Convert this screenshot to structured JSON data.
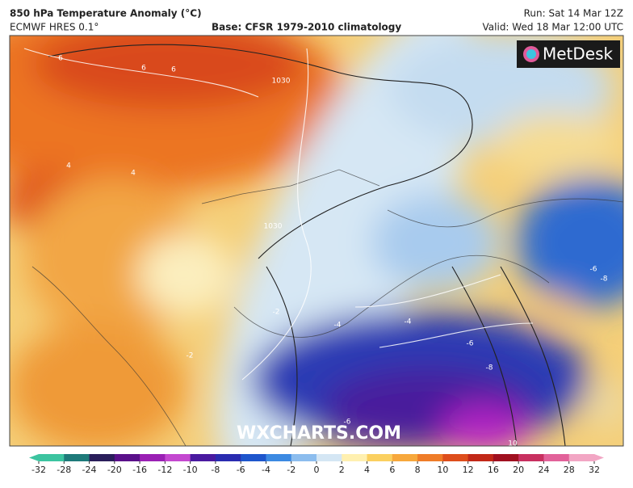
{
  "header": {
    "title": "850 hPa Temperature Anomaly (°C)",
    "model": "ECMWF HRES 0.1°",
    "base": "Base: CFSR 1979-2010 climatology",
    "run": "Run: Sat 14 Mar 12Z",
    "valid": "Valid: Wed 18 Mar 12:00 UTC"
  },
  "logo": "MetDesk",
  "watermark": "WXCHARTS.COM",
  "contour_labels": [
    "6",
    "6",
    "6",
    "4",
    "4",
    "-2",
    "-2",
    "-4",
    "-4",
    "-6",
    "-6",
    "-8",
    "-8",
    "1030",
    "1030",
    "-6",
    "10"
  ],
  "colorbar": {
    "ticks": [
      -32,
      -28,
      -24,
      -20,
      -16,
      -12,
      -10,
      -8,
      -6,
      -4,
      -2,
      0,
      2,
      4,
      6,
      8,
      10,
      12,
      16,
      20,
      24,
      28,
      32
    ],
    "colors": [
      "#3cc4a0",
      "#1e7a7a",
      "#2a1e5a",
      "#5a108a",
      "#9a20b4",
      "#c448d0",
      "#4a1aa0",
      "#2a2cb0",
      "#1e56cc",
      "#3c8ae2",
      "#8cbdee",
      "#d4e6f4",
      "#fff0b0",
      "#fbd060",
      "#f7a83c",
      "#ef7c28",
      "#de4e1c",
      "#c22818",
      "#a01020",
      "#c83060",
      "#e2629a",
      "#f2a6c4"
    ]
  }
}
